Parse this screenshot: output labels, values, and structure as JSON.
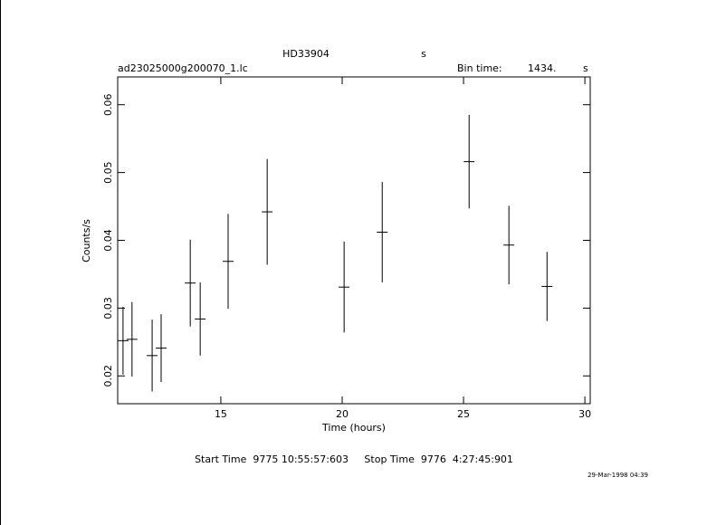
{
  "chart_data": {
    "type": "errorbar",
    "title": "HD33904",
    "title_unit": "s",
    "file_name": "ad23025000g200070_1.lc",
    "bin_time_label": "Bin time:",
    "bin_time": "1434.",
    "bin_time_unit": "s",
    "x_label": "Time (hours)",
    "y_label": "Counts/s",
    "footer": "Start Time  9775 10:55:57:603     Stop Time  9776  4:27:45:901",
    "date_stamp": "29-Mar-1998 04:39",
    "xlim": [
      10.75,
      30.22
    ],
    "xticks": [
      15,
      20,
      25,
      30
    ],
    "ylim": [
      0.0159,
      0.0641
    ],
    "yticks": [
      0.02,
      0.03,
      0.04,
      0.05,
      0.06
    ],
    "color": "#000000",
    "x": [
      10.97,
      11.34,
      12.17,
      12.54,
      13.74,
      14.15,
      15.3,
      16.91,
      20.08,
      21.65,
      25.23,
      26.87,
      28.44
    ],
    "values": [
      0.0252,
      0.0254,
      0.023,
      0.0241,
      0.0337,
      0.0284,
      0.0369,
      0.0442,
      0.0331,
      0.0412,
      0.0516,
      0.0393,
      0.0332
    ],
    "errors": [
      0.005,
      0.0055,
      0.0053,
      0.005,
      0.0064,
      0.0054,
      0.007,
      0.0078,
      0.0067,
      0.0074,
      0.0069,
      0.0058,
      0.0051
    ]
  }
}
